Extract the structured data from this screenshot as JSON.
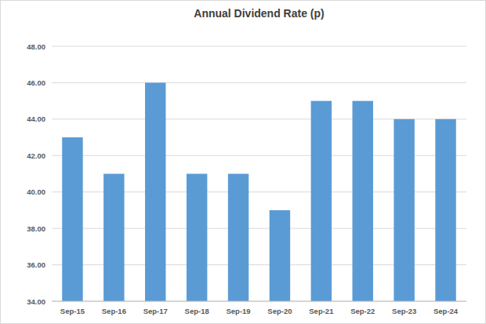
{
  "chart_data": {
    "type": "bar",
    "title": "Annual Dividend Rate (p)",
    "categories": [
      "Sep-15",
      "Sep-16",
      "Sep-17",
      "Sep-18",
      "Sep-19",
      "Sep-20",
      "Sep-21",
      "Sep-22",
      "Sep-23",
      "Sep-24"
    ],
    "values": [
      43,
      41,
      46,
      41,
      41,
      39,
      45,
      45,
      44,
      44
    ],
    "color": "#5b9bd5",
    "ylim": [
      34,
      48
    ],
    "yticks": [
      {
        "value": 34,
        "label": "34.00"
      },
      {
        "value": 36,
        "label": "36.00"
      },
      {
        "value": 38,
        "label": "38.00"
      },
      {
        "value": 40,
        "label": "40.00"
      },
      {
        "value": 42,
        "label": "42.00"
      },
      {
        "value": 44,
        "label": "44.00"
      },
      {
        "value": 46,
        "label": "46.00"
      },
      {
        "value": 48,
        "label": "48.00"
      }
    ],
    "grid": true
  }
}
